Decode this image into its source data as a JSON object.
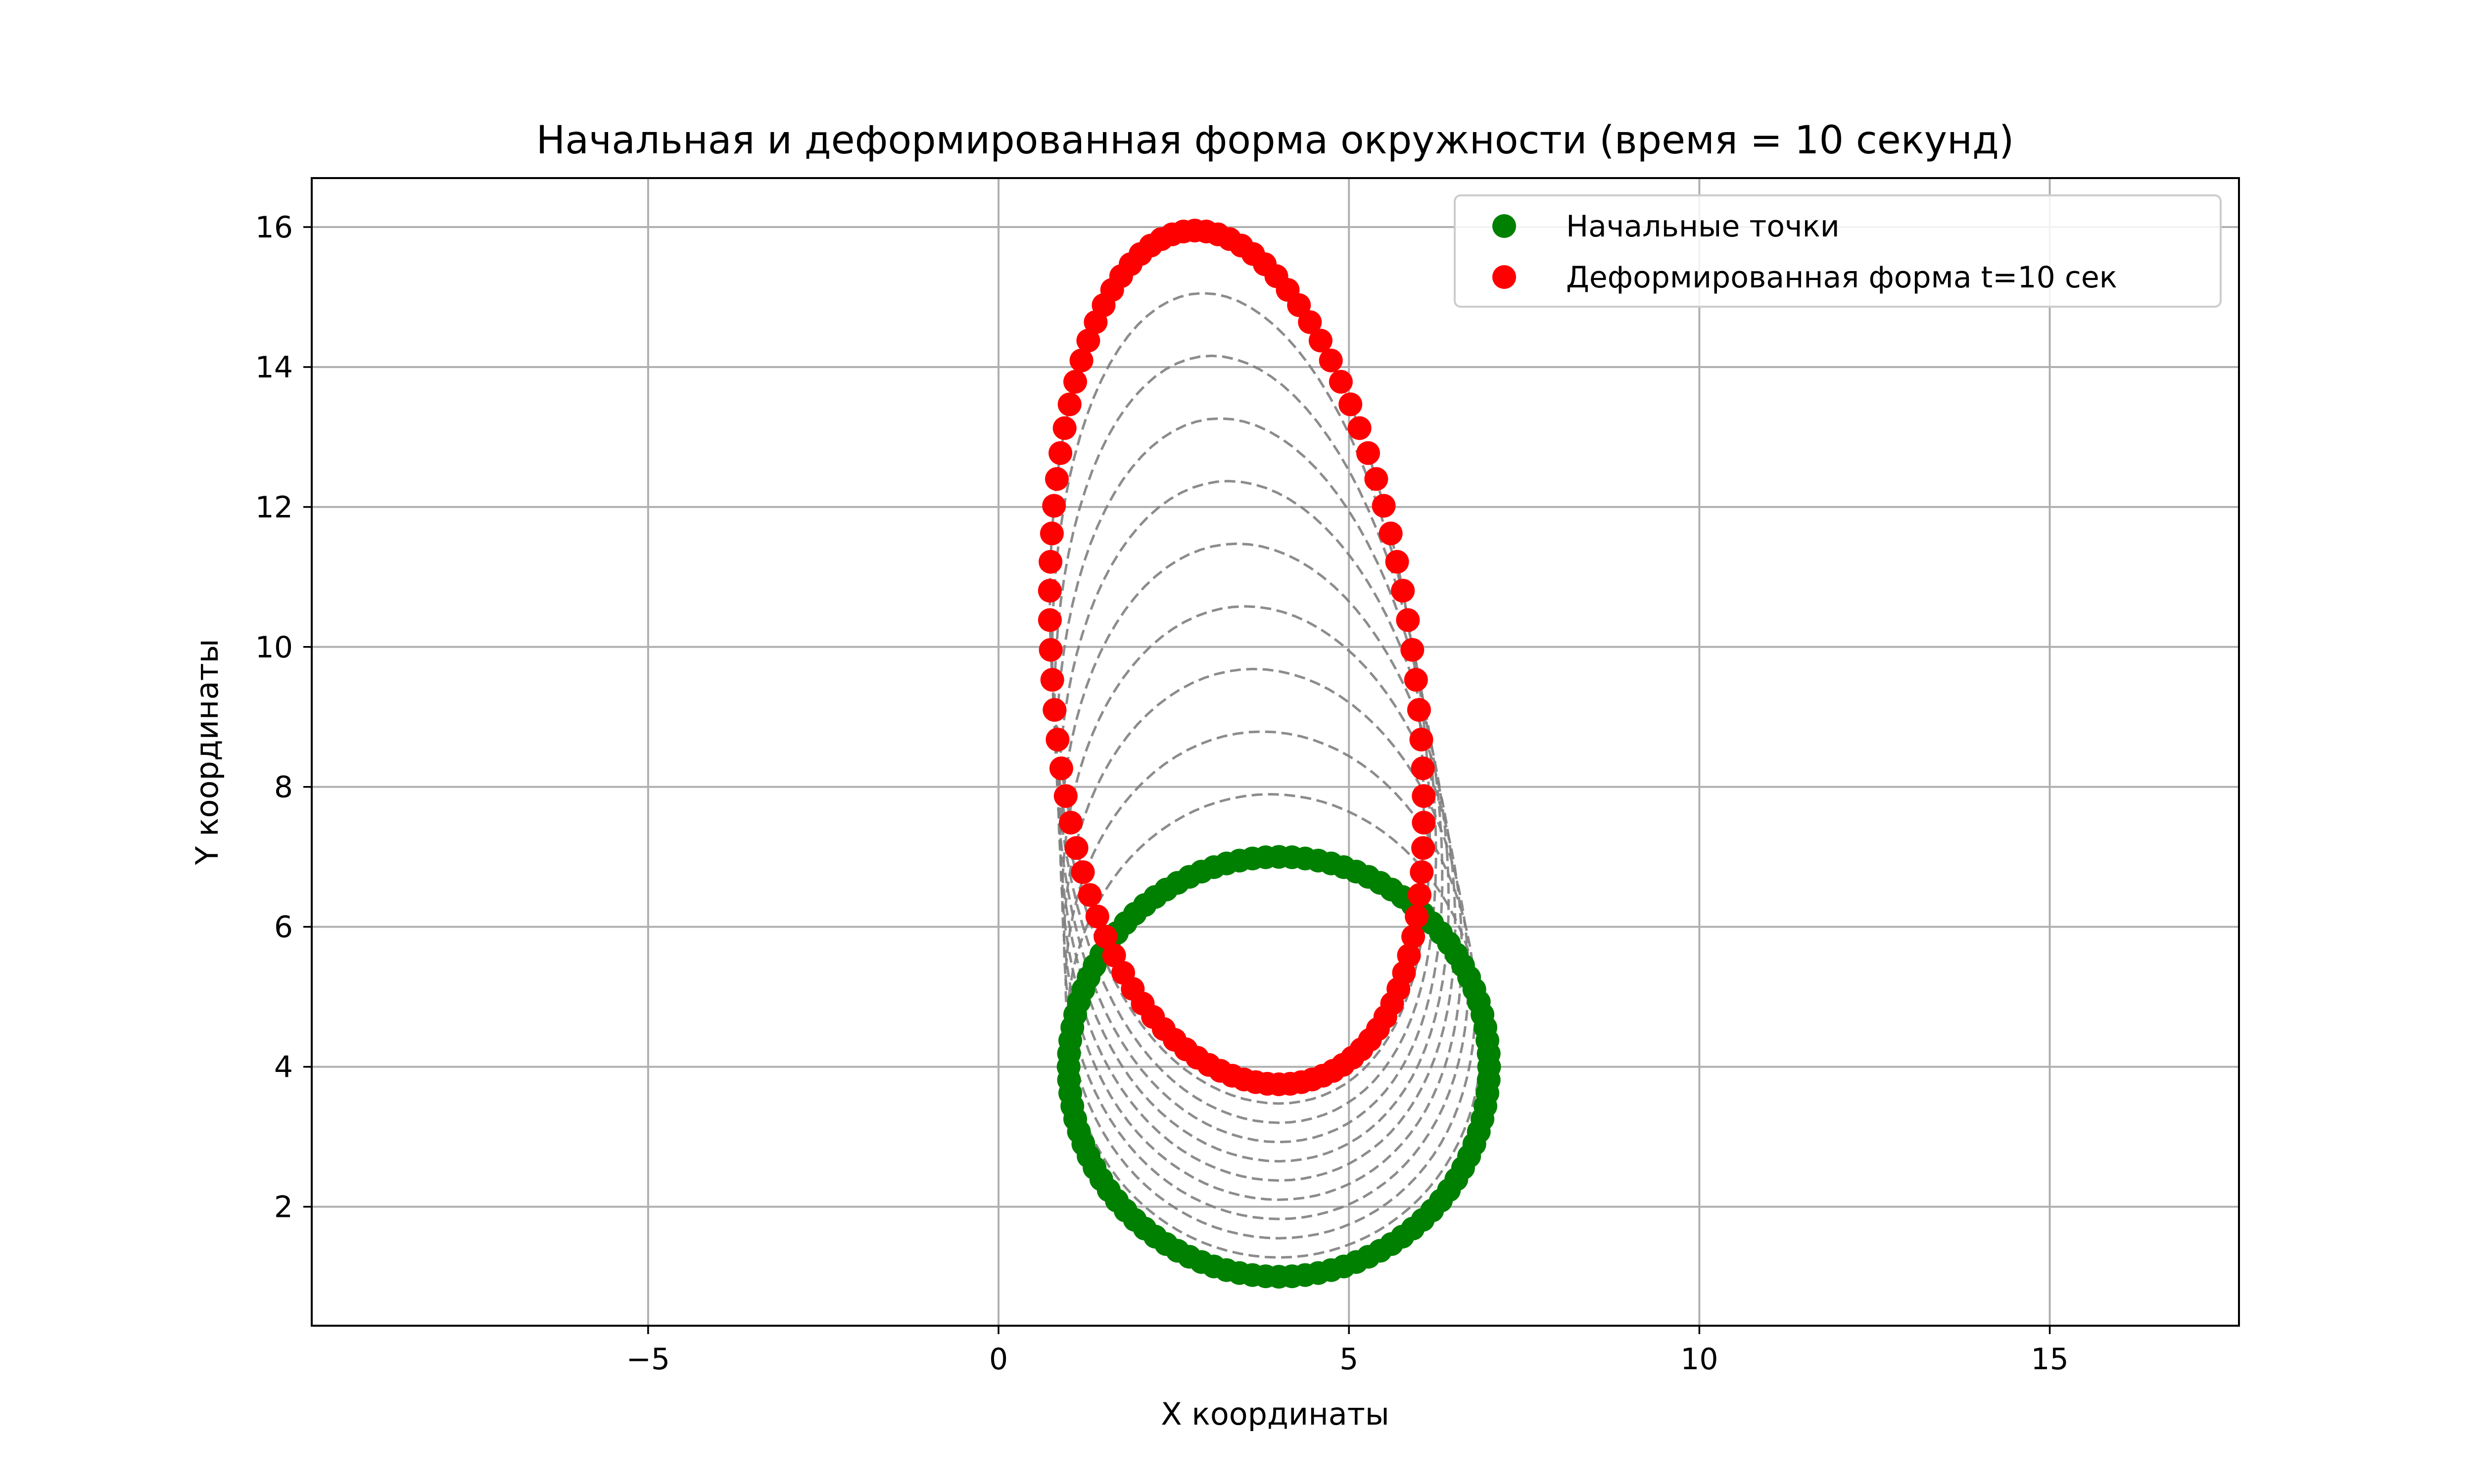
{
  "chart_data": {
    "type": "scatter",
    "title": "Начальная и деформированная форма окружности (время = 10 секунд)",
    "xlabel": "X координаты",
    "ylabel": "Y координаты",
    "xlim": [
      -9.8,
      17.7
    ],
    "ylim": [
      0.3,
      16.7
    ],
    "xticks": [
      -5,
      0,
      5,
      10,
      15
    ],
    "xtick_labels": [
      "−5",
      "0",
      "5",
      "10",
      "15"
    ],
    "yticks": [
      2,
      4,
      6,
      8,
      10,
      12,
      14,
      16
    ],
    "ytick_labels": [
      "2",
      "4",
      "6",
      "8",
      "10",
      "12",
      "14",
      "16"
    ],
    "grid": true,
    "legend_position": "top-right",
    "point_count": 100,
    "time_steps": 10,
    "initial_shape": {
      "shape": "circle",
      "center": [
        4,
        4
      ],
      "radius": 3
    },
    "deformed_shape": {
      "shape": "deformed loop",
      "x_center": 3.4,
      "x_amplitude": 2.6,
      "y_center": 9.1,
      "y_amplitude": 6.85,
      "bottom_dip": 1.5,
      "x_skew": -0.6
    },
    "trajectory_style": "gray dashed",
    "series": [
      {
        "name": "Начальные точки",
        "color": "#008000"
      },
      {
        "name": "Деформированная форма t=10 сек",
        "color": "#ff0000"
      }
    ]
  }
}
